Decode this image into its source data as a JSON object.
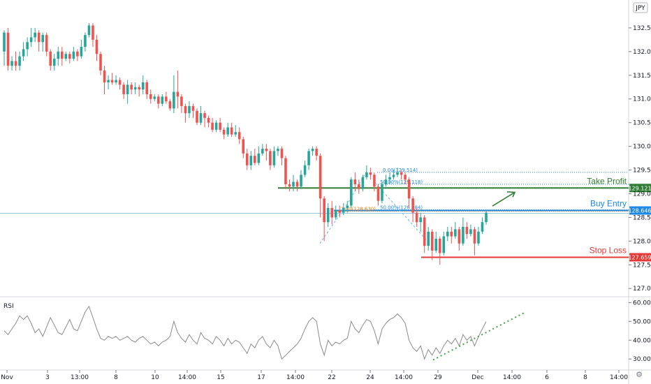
{
  "symbol_badge": "JPY",
  "chart_data": {
    "type": "candlestick",
    "price_axis": {
      "ticks": [
        127.0,
        127.5,
        128.0,
        128.5,
        129.0,
        129.5,
        130.0,
        130.5,
        131.0,
        131.5,
        132.0,
        132.5
      ],
      "tick_labels": [
        "127.000",
        "127.500",
        "128.000",
        "128.500",
        "129.000",
        "129.500",
        "130.000",
        "130.500",
        "131.000",
        "131.500",
        "132.000",
        "132.500"
      ],
      "range": [
        126.9,
        133.0
      ]
    },
    "time_axis": {
      "labels": [
        "Nov",
        "3",
        "13:00",
        "8",
        "10",
        "14:00",
        "15",
        "17",
        "14:00",
        "22",
        "24",
        "14:00",
        "29",
        "Dec",
        "14:00",
        "6",
        "8",
        "14:00"
      ]
    },
    "levels": [
      {
        "name": "Take Profit",
        "price": 129.121,
        "price_label": "129.121",
        "color": "#2e7d32"
      },
      {
        "name": "Buy Entry",
        "price": 128.646,
        "price_label": "128.646",
        "color": "#1e88e5"
      },
      {
        "name": "Stop Loss",
        "price": 127.659,
        "price_label": "127.659",
        "color": "#e53935"
      }
    ],
    "fib_labels": [
      {
        "text": "1.00(128.630)",
        "price": 128.63,
        "color": "#f57c00"
      },
      {
        "text": "0.00(129.514)",
        "price": 129.45,
        "color": "#1e88e5"
      },
      {
        "text": "50.00%(129.118)",
        "price": 129.2,
        "color": "#1e88e5"
      },
      {
        "text": "50.00%(128.684)",
        "price": 128.66,
        "color": "#1e88e5"
      }
    ],
    "candles": [
      [
        132.0,
        132.4,
        132.45,
        131.7
      ],
      [
        132.4,
        131.7,
        132.5,
        131.6
      ],
      [
        131.7,
        131.8,
        131.9,
        131.6
      ],
      [
        131.8,
        131.7,
        132.0,
        131.6
      ],
      [
        131.7,
        131.9,
        132.0,
        131.6
      ],
      [
        131.9,
        132.05,
        132.2,
        131.8
      ],
      [
        132.05,
        132.2,
        132.3,
        131.9
      ],
      [
        132.2,
        132.3,
        132.5,
        132.1
      ],
      [
        132.3,
        132.4,
        132.5,
        132.2
      ],
      [
        132.4,
        132.2,
        132.45,
        132.0
      ],
      [
        132.2,
        132.35,
        132.4,
        132.0
      ],
      [
        132.35,
        132.0,
        132.4,
        131.9
      ],
      [
        132.0,
        131.7,
        132.05,
        131.6
      ],
      [
        131.7,
        131.85,
        131.95,
        131.6
      ],
      [
        131.85,
        132.0,
        132.1,
        131.7
      ],
      [
        132.0,
        131.85,
        132.1,
        131.7
      ],
      [
        131.85,
        131.95,
        132.0,
        131.8
      ],
      [
        131.95,
        131.85,
        132.0,
        131.75
      ],
      [
        131.85,
        132.0,
        132.1,
        131.8
      ],
      [
        132.0,
        131.9,
        132.05,
        131.8
      ],
      [
        131.9,
        132.1,
        132.25,
        131.85
      ],
      [
        132.1,
        132.35,
        132.4,
        132.0
      ],
      [
        132.35,
        132.55,
        132.6,
        132.3
      ],
      [
        132.55,
        132.25,
        132.6,
        132.1
      ],
      [
        132.25,
        131.95,
        132.35,
        131.8
      ],
      [
        131.95,
        131.6,
        132.0,
        131.5
      ],
      [
        131.6,
        131.35,
        131.7,
        131.1
      ],
      [
        131.35,
        131.4,
        131.5,
        131.2
      ],
      [
        131.4,
        131.35,
        131.55,
        131.3
      ],
      [
        131.35,
        131.4,
        131.5,
        131.3
      ],
      [
        131.4,
        131.3,
        131.45,
        131.2
      ],
      [
        131.3,
        131.1,
        131.35,
        131.0
      ],
      [
        131.1,
        131.3,
        131.4,
        130.9
      ],
      [
        131.3,
        131.2,
        131.35,
        131.1
      ],
      [
        131.2,
        131.25,
        131.35,
        131.1
      ],
      [
        131.25,
        131.2,
        131.3,
        131.05
      ],
      [
        131.2,
        131.35,
        131.5,
        131.1
      ],
      [
        131.35,
        131.1,
        131.4,
        131.0
      ],
      [
        131.1,
        131.0,
        131.2,
        130.9
      ],
      [
        131.0,
        131.05,
        131.1,
        130.95
      ],
      [
        131.05,
        130.9,
        131.1,
        130.8
      ],
      [
        130.9,
        131.05,
        131.1,
        130.85
      ],
      [
        131.05,
        130.95,
        131.15,
        130.9
      ],
      [
        130.95,
        130.8,
        131.0,
        130.75
      ],
      [
        130.8,
        131.15,
        131.5,
        130.7
      ],
      [
        131.15,
        131.05,
        131.6,
        130.8
      ],
      [
        131.05,
        130.85,
        131.1,
        130.7
      ],
      [
        130.85,
        130.7,
        130.9,
        130.5
      ],
      [
        130.7,
        130.85,
        130.95,
        130.6
      ],
      [
        130.85,
        130.75,
        130.9,
        130.6
      ],
      [
        130.75,
        130.5,
        130.8,
        130.45
      ],
      [
        130.5,
        130.7,
        130.85,
        130.45
      ],
      [
        130.7,
        130.6,
        130.75,
        130.4
      ],
      [
        130.6,
        130.5,
        130.65,
        130.4
      ],
      [
        130.5,
        130.35,
        130.6,
        130.3
      ],
      [
        130.35,
        130.5,
        130.55,
        130.3
      ],
      [
        130.5,
        130.35,
        130.6,
        130.3
      ],
      [
        130.35,
        130.25,
        130.4,
        130.15
      ],
      [
        130.25,
        130.4,
        130.5,
        130.2
      ],
      [
        130.4,
        130.25,
        130.5,
        130.2
      ],
      [
        130.25,
        130.3,
        130.45,
        130.2
      ],
      [
        130.3,
        130.15,
        130.4,
        130.05
      ],
      [
        130.15,
        129.85,
        130.2,
        129.75
      ],
      [
        129.85,
        129.6,
        129.95,
        129.5
      ],
      [
        129.6,
        129.8,
        129.9,
        129.5
      ],
      [
        129.8,
        129.65,
        129.95,
        129.6
      ],
      [
        129.65,
        129.85,
        130.0,
        129.6
      ],
      [
        129.85,
        129.95,
        130.05,
        129.8
      ],
      [
        129.95,
        129.9,
        130.05,
        129.7
      ],
      [
        129.9,
        129.6,
        129.95,
        129.5
      ],
      [
        129.6,
        129.9,
        130.0,
        129.55
      ],
      [
        129.9,
        129.95,
        130.0,
        129.8
      ],
      [
        129.95,
        129.75,
        130.0,
        129.6
      ],
      [
        129.75,
        129.2,
        129.8,
        129.1
      ],
      [
        129.2,
        129.15,
        129.3,
        129.05
      ],
      [
        129.15,
        129.25,
        129.4,
        129.05
      ],
      [
        129.25,
        129.15,
        129.3,
        129.05
      ],
      [
        129.15,
        129.4,
        129.5,
        129.1
      ],
      [
        129.4,
        129.6,
        129.7,
        129.35
      ],
      [
        129.6,
        129.9,
        129.95,
        129.5
      ],
      [
        129.9,
        129.95,
        130.0,
        129.8
      ],
      [
        129.95,
        129.8,
        130.0,
        129.7
      ],
      [
        129.8,
        128.9,
        129.85,
        128.5
      ],
      [
        128.9,
        128.4,
        128.95,
        128.0
      ],
      [
        128.4,
        128.7,
        128.8,
        128.3
      ],
      [
        128.7,
        128.5,
        128.85,
        128.35
      ],
      [
        128.5,
        128.65,
        128.75,
        128.45
      ],
      [
        128.65,
        128.6,
        128.75,
        128.5
      ],
      [
        128.6,
        128.7,
        128.8,
        128.55
      ],
      [
        128.7,
        128.75,
        128.85,
        128.6
      ],
      [
        128.75,
        129.3,
        129.35,
        128.7
      ],
      [
        129.3,
        129.2,
        129.45,
        129.05
      ],
      [
        129.2,
        129.1,
        129.3,
        129.0
      ],
      [
        129.1,
        129.35,
        129.4,
        129.05
      ],
      [
        129.35,
        129.45,
        129.6,
        129.3
      ],
      [
        129.45,
        129.4,
        129.55,
        129.3
      ],
      [
        129.4,
        129.15,
        129.45,
        129.05
      ],
      [
        129.15,
        128.85,
        129.2,
        128.75
      ],
      [
        128.85,
        129.2,
        129.25,
        128.8
      ],
      [
        129.2,
        129.3,
        129.4,
        129.15
      ],
      [
        129.3,
        129.35,
        129.45,
        129.2
      ],
      [
        129.35,
        129.4,
        129.5,
        129.3
      ],
      [
        129.4,
        129.45,
        129.55,
        129.35
      ],
      [
        129.45,
        129.4,
        129.5,
        129.3
      ],
      [
        129.4,
        129.3,
        129.45,
        129.2
      ],
      [
        129.3,
        128.9,
        129.35,
        128.7
      ],
      [
        128.9,
        128.6,
        128.95,
        128.4
      ],
      [
        128.6,
        128.4,
        128.7,
        128.3
      ],
      [
        128.4,
        128.5,
        128.6,
        128.2
      ],
      [
        128.5,
        127.9,
        128.55,
        127.75
      ],
      [
        127.9,
        128.2,
        128.3,
        127.8
      ],
      [
        128.2,
        127.8,
        128.25,
        127.6
      ],
      [
        127.8,
        128.05,
        128.2,
        127.75
      ],
      [
        128.05,
        127.75,
        128.1,
        127.5
      ],
      [
        127.75,
        128.1,
        128.2,
        127.7
      ],
      [
        128.1,
        128.2,
        128.3,
        128.0
      ],
      [
        128.2,
        128.1,
        128.3,
        127.95
      ],
      [
        128.1,
        128.25,
        128.4,
        128.05
      ],
      [
        128.25,
        127.95,
        128.3,
        127.8
      ],
      [
        127.95,
        128.3,
        128.5,
        127.9
      ],
      [
        128.3,
        128.15,
        128.4,
        128.05
      ],
      [
        128.15,
        128.25,
        128.35,
        128.1
      ],
      [
        128.25,
        127.95,
        128.3,
        127.7
      ],
      [
        127.95,
        128.2,
        128.3,
        127.9
      ],
      [
        128.2,
        128.4,
        128.5,
        128.15
      ],
      [
        128.4,
        128.6,
        128.65,
        128.35
      ]
    ],
    "rsi": {
      "label": "RSI",
      "ticks": [
        30,
        40,
        50,
        60
      ],
      "tick_labels": [
        "30.00",
        "40.00",
        "50.00",
        "60.00"
      ],
      "range": [
        26,
        62
      ],
      "values": [
        45,
        43,
        46,
        49,
        53,
        51,
        53,
        49,
        44,
        46,
        42,
        47,
        52,
        48,
        44,
        43,
        47,
        51,
        46,
        45,
        50,
        55,
        58,
        52,
        46,
        41,
        40,
        42,
        41,
        42,
        40,
        41,
        42,
        40,
        39,
        41,
        42,
        40,
        38,
        39,
        37,
        39,
        40,
        42,
        50,
        44,
        41,
        39,
        43,
        40,
        38,
        44,
        41,
        40,
        38,
        42,
        40,
        37,
        41,
        38,
        40,
        39,
        36,
        33,
        38,
        36,
        40,
        42,
        38,
        36,
        40,
        37,
        30,
        32,
        34,
        36,
        38,
        41,
        46,
        50,
        52,
        50,
        38,
        32,
        40,
        37,
        39,
        38,
        40,
        41,
        50,
        46,
        44,
        48,
        51,
        50,
        45,
        38,
        46,
        49,
        51,
        52,
        54,
        52,
        49,
        40,
        36,
        34,
        37,
        30,
        35,
        32,
        36,
        33,
        37,
        40,
        38,
        41,
        37,
        43,
        40,
        42,
        37,
        42,
        46,
        50
      ]
    }
  }
}
